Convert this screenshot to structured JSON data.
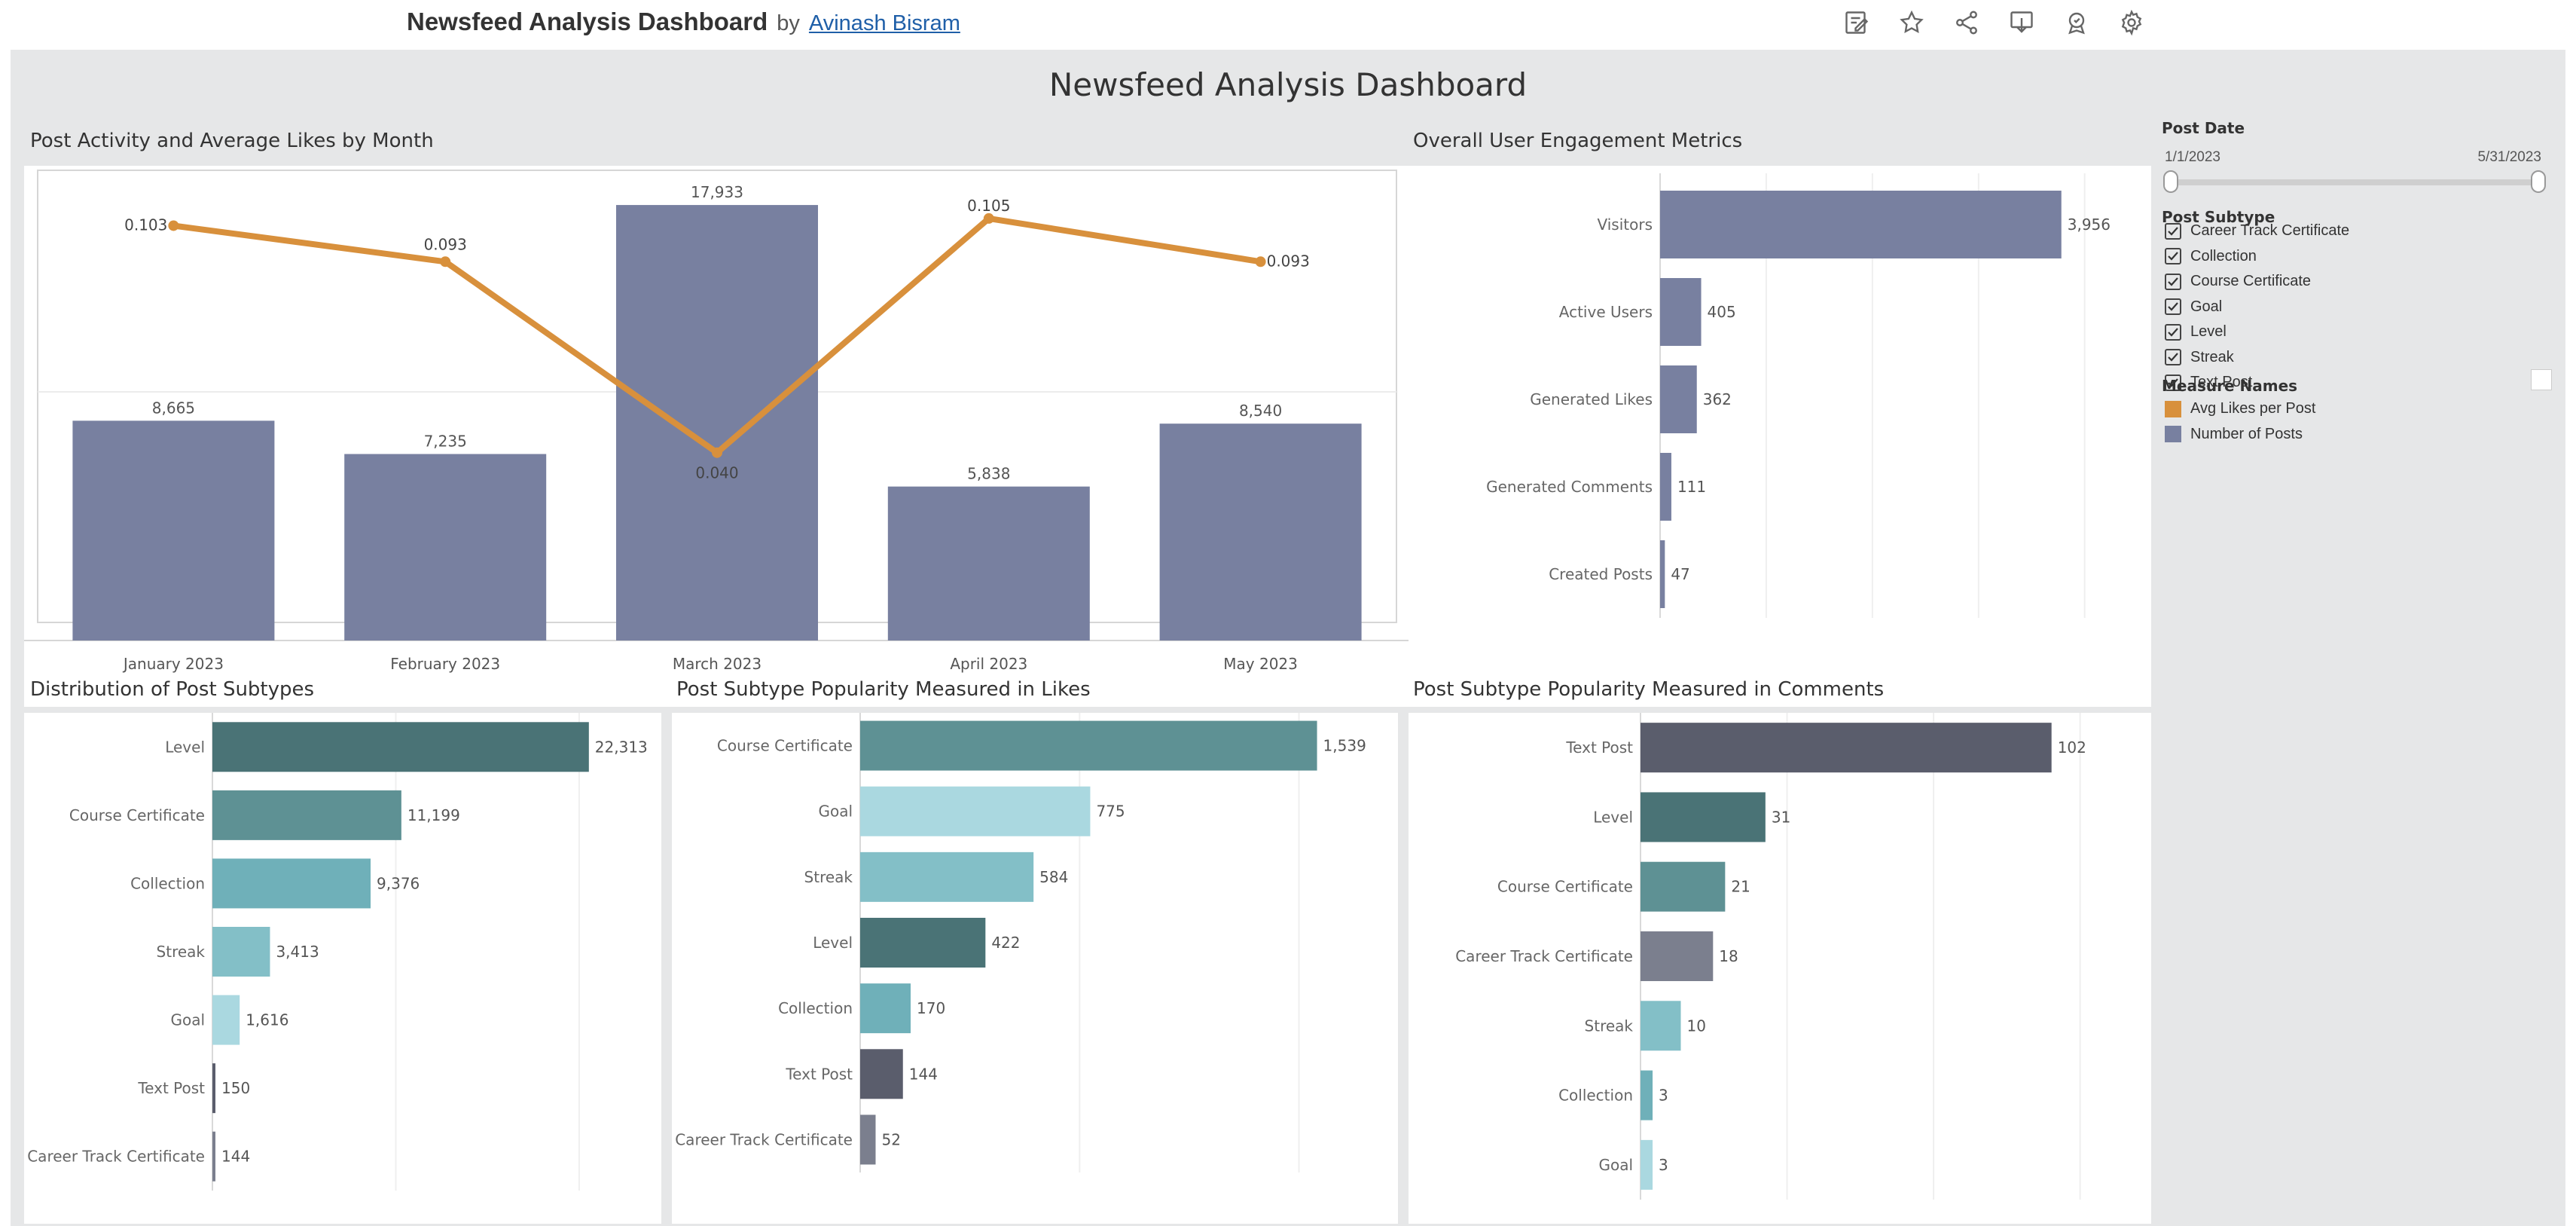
{
  "header": {
    "title": "Newsfeed Analysis Dashboard",
    "by": "by",
    "author": "Avinash Bisram",
    "icons": [
      "edit-icon",
      "star-icon",
      "share-icon",
      "download-icon",
      "badge-icon",
      "gear-icon"
    ]
  },
  "dashboard": {
    "title": "Newsfeed Analysis Dashboard"
  },
  "colors": {
    "bar_purple": "#7880a0",
    "line_orange": "#d8903c",
    "level": "#4a7376",
    "course_certificate": "#5e9194",
    "collection": "#6fb0b9",
    "streak": "#83bfc7",
    "goal": "#aad8e0",
    "text_post": "#5a5d6c",
    "career_track_certificate": "#7b7f8e"
  },
  "charts": {
    "activity": {
      "title": "Post Activity and Average Likes by Month",
      "chart_data": {
        "type": "bar",
        "categories": [
          "January 2023",
          "February 2023",
          "March 2023",
          "April 2023",
          "May 2023"
        ],
        "series": [
          {
            "name": "Number of Posts",
            "type": "bar",
            "values": [
              8665,
              7235,
              17933,
              5838,
              8540
            ],
            "labels": [
              "8,665",
              "7,235",
              "17,933",
              "5,838",
              "8,540"
            ]
          },
          {
            "name": "Avg Likes per Post",
            "type": "line",
            "values": [
              0.103,
              0.093,
              0.04,
              0.105,
              0.093
            ],
            "labels": [
              "0.103",
              "0.093",
              "0.040",
              "0.105",
              "0.093"
            ]
          }
        ],
        "ylim_bars": [
          0,
          18000
        ],
        "ylim_line": [
          0,
          0.11
        ]
      }
    },
    "engagement": {
      "title": "Overall User Engagement Metrics",
      "chart_data": {
        "type": "bar",
        "orientation": "horizontal",
        "categories": [
          "Visitors",
          "Active Users",
          "Generated Likes",
          "Generated Comments",
          "Created Posts"
        ],
        "values": [
          3956,
          405,
          362,
          111,
          47
        ],
        "labels": [
          "3,956",
          "405",
          "362",
          "111",
          "47"
        ],
        "xlim": [
          0,
          4500
        ]
      }
    },
    "distribution": {
      "title": "Distribution of Post Subtypes",
      "chart_data": {
        "type": "bar",
        "orientation": "horizontal",
        "categories": [
          "Level",
          "Course Certificate",
          "Collection",
          "Streak",
          "Goal",
          "Text Post",
          "Career Track Certificate"
        ],
        "values": [
          22313,
          11199,
          9376,
          3413,
          1616,
          150,
          144
        ],
        "labels": [
          "22,313",
          "11,199",
          "9,376",
          "3,413",
          "1,616",
          "150",
          "144"
        ],
        "xlim": [
          0,
          25000
        ]
      }
    },
    "likes": {
      "title": "Post Subtype Popularity Measured in Likes",
      "chart_data": {
        "type": "bar",
        "orientation": "horizontal",
        "categories": [
          "Course Certificate",
          "Goal",
          "Streak",
          "Level",
          "Collection",
          "Text Post",
          "Career Track Certificate"
        ],
        "values": [
          1539,
          775,
          584,
          422,
          170,
          144,
          52
        ],
        "labels": [
          "1,539",
          "775",
          "584",
          "422",
          "170",
          "144",
          "52"
        ],
        "xlim": [
          0,
          1700
        ]
      }
    },
    "comments": {
      "title": "Post Subtype Popularity Measured in Comments",
      "chart_data": {
        "type": "bar",
        "orientation": "horizontal",
        "categories": [
          "Text Post",
          "Level",
          "Course Certificate",
          "Career Track Certificate",
          "Streak",
          "Collection",
          "Goal"
        ],
        "values": [
          102,
          31,
          21,
          18,
          10,
          3,
          3
        ],
        "labels": [
          "102",
          "31",
          "21",
          "18",
          "10",
          "3",
          "3"
        ],
        "xlim": [
          0,
          120
        ]
      }
    }
  },
  "filters": {
    "post_date": {
      "title": "Post Date",
      "start": "1/1/2023",
      "end": "5/31/2023"
    },
    "post_subtype": {
      "title": "Post Subtype",
      "items": [
        {
          "label": "Career Track Certificate",
          "checked": true
        },
        {
          "label": "Collection",
          "checked": true
        },
        {
          "label": "Course Certificate",
          "checked": true
        },
        {
          "label": "Goal",
          "checked": true
        },
        {
          "label": "Level",
          "checked": true
        },
        {
          "label": "Streak",
          "checked": true
        },
        {
          "label": "Text Post",
          "checked": true
        }
      ]
    },
    "measure_names": {
      "title": "Measure Names",
      "items": [
        {
          "label": "Avg Likes per Post",
          "color": "#d8903c"
        },
        {
          "label": "Number of Posts",
          "color": "#7880a0"
        }
      ]
    }
  }
}
